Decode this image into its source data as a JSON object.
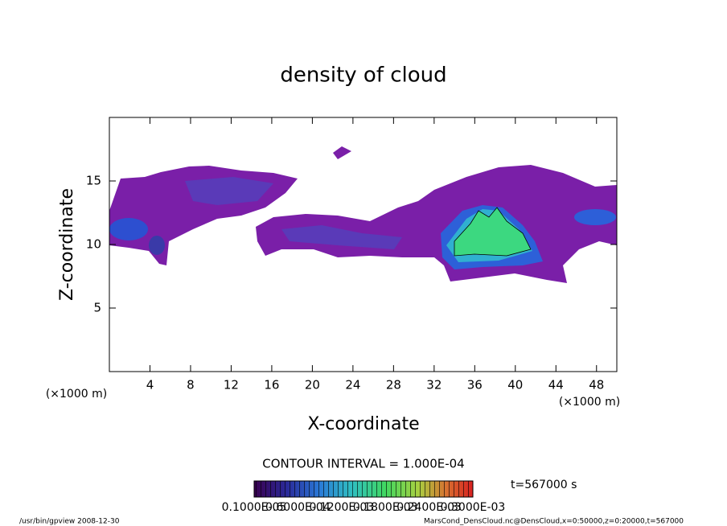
{
  "chart_data": {
    "type": "contour",
    "title": "density of cloud",
    "xlabel": "X-coordinate",
    "ylabel": "Z-coordinate",
    "xunit_left": "(×1000 m)",
    "xunit_right": "(×1000 m)",
    "xlim": [
      0,
      50
    ],
    "ylim": [
      0,
      20
    ],
    "xticks": [
      4,
      8,
      12,
      16,
      20,
      24,
      28,
      32,
      36,
      40,
      44,
      48
    ],
    "yticks": [
      5,
      10,
      15
    ],
    "contour_interval": "CONTOUR INTERVAL = 1.000E-04",
    "time": "t=567000 s",
    "colorbar_labels": [
      "0.1000E-05",
      "0.6000E-04",
      "0.1200E-03",
      "0.1800E-03",
      "0.2400E-03",
      "0.3000E-03"
    ],
    "footer_left": "/usr/bin/gpview   2008-12-30",
    "footer_right": "MarsCond_DensCloud.nc@DensCloud,x=0:50000,z=0:20000,t=567000"
  }
}
